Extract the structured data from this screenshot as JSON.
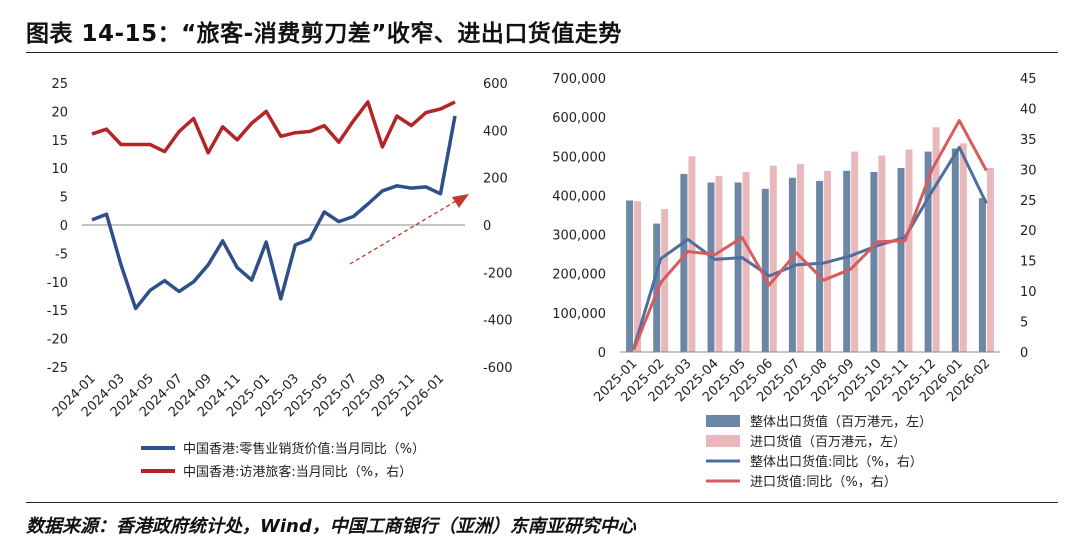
{
  "title": "图表 14-15：“旅客-消费剪刀差”收窄、进出口货值走势",
  "source": "数据来源：香港政府统计处，Wind，中国工商银行（亚洲）东南亚研究中心",
  "colors": {
    "blue": "#2E4F8A",
    "red": "#B4252A",
    "bar_blue": "#6C86A6",
    "bar_pink": "#E8B8BA",
    "line_blue": "#4E6E9F",
    "line_red": "#D75C5E",
    "arrow": "#C0392B"
  },
  "chart_data": [
    {
      "type": "line",
      "x": [
        "2024-01",
        "2024-02",
        "2024-03",
        "2024-04",
        "2024-05",
        "2024-06",
        "2024-07",
        "2024-08",
        "2024-09",
        "2024-10",
        "2024-11",
        "2024-12",
        "2025-01",
        "2025-02",
        "2025-03",
        "2025-04",
        "2025-05",
        "2025-06",
        "2025-07",
        "2025-08",
        "2025-09",
        "2025-10",
        "2025-11",
        "2025-12",
        "2026-01",
        "2026-02"
      ],
      "x_tick_labels": [
        "2024-01",
        "2024-03",
        "2024-05",
        "2024-07",
        "2024-09",
        "2024-11",
        "2025-01",
        "2025-03",
        "2025-05",
        "2025-07",
        "2025-09",
        "2025-11",
        "2026-01"
      ],
      "y_left": {
        "min": -25,
        "max": 25,
        "step": 5,
        "ticks": [
          "25",
          "20",
          "15",
          "10",
          "5",
          "0",
          "-5",
          "-10",
          "-15",
          "-20",
          "-25"
        ]
      },
      "y_right": {
        "min": -600,
        "max": 600,
        "step": 200,
        "ticks": [
          "600",
          "400",
          "200",
          "0",
          "-200",
          "-400",
          "-600"
        ]
      },
      "series": [
        {
          "name": "中国香港:零售业销货价值:当月同比（%）",
          "axis": "left",
          "color": "#2E4F8A",
          "values": [
            0.9,
            1.9,
            -7.0,
            -14.7,
            -11.5,
            -9.8,
            -11.7,
            -10.0,
            -7.0,
            -2.8,
            -7.5,
            -9.7,
            -3.0,
            -13.0,
            -3.5,
            -2.5,
            2.3,
            0.6,
            1.5,
            3.7,
            6.0,
            6.9,
            6.5,
            6.7,
            5.5,
            19.2
          ]
        },
        {
          "name": "中国香港:访港旅客:当月同比（%，右）",
          "axis": "right",
          "color": "#B4252A",
          "values": [
            385,
            405,
            340,
            340,
            340,
            310,
            395,
            450,
            305,
            415,
            360,
            430,
            480,
            375,
            390,
            395,
            420,
            350,
            440,
            520,
            330,
            460,
            420,
            475,
            490,
            520
          ]
        }
      ],
      "annotation": "dashed-arrow"
    },
    {
      "type": "bar",
      "categories": [
        "2025-01",
        "2025-02",
        "2025-03",
        "2025-04",
        "2025-05",
        "2025-06",
        "2025-07",
        "2025-08",
        "2025-09",
        "2025-10",
        "2025-11",
        "2025-12",
        "2026-01",
        "2026-02"
      ],
      "y_left": {
        "min": 0,
        "max": 700000,
        "step": 100000,
        "ticks": [
          "700,000",
          "600,000",
          "500,000",
          "400,000",
          "300,000",
          "200,000",
          "100,000",
          "0"
        ]
      },
      "y_right": {
        "min": 0,
        "max": 45,
        "step": 5,
        "ticks": [
          "45",
          "40",
          "35",
          "30",
          "25",
          "20",
          "15",
          "10",
          "5",
          "0"
        ]
      },
      "series": [
        {
          "name": "整体出口货值（百万港元，左）",
          "kind": "bar",
          "axis": "left",
          "color": "#6C86A6",
          "values": [
            387000,
            328000,
            455000,
            433000,
            433000,
            417000,
            445000,
            437000,
            463000,
            460000,
            470000,
            512000,
            520000,
            393000
          ]
        },
        {
          "name": "进口货值（百万港元，左）",
          "kind": "bar",
          "axis": "left",
          "color": "#E8B8BA",
          "values": [
            385000,
            365000,
            500000,
            450000,
            460000,
            476000,
            480000,
            463000,
            512000,
            502000,
            517000,
            574000,
            533000,
            470000
          ]
        },
        {
          "name": "整体出口货值:同比（%，右）",
          "kind": "line",
          "axis": "right",
          "color": "#4E6E9F",
          "values": [
            0.5,
            15.3,
            18.5,
            15.2,
            15.5,
            12.5,
            14.3,
            14.6,
            15.8,
            17.5,
            18.8,
            26.4,
            33.6,
            24.4
          ]
        },
        {
          "name": "进口货值:同比（%，右）",
          "kind": "line",
          "axis": "right",
          "color": "#D75C5E",
          "values": [
            0.3,
            11.4,
            16.5,
            16.0,
            18.8,
            11.0,
            16.3,
            11.8,
            13.6,
            18.1,
            18.3,
            30.0,
            38.0,
            29.8
          ]
        }
      ]
    }
  ]
}
